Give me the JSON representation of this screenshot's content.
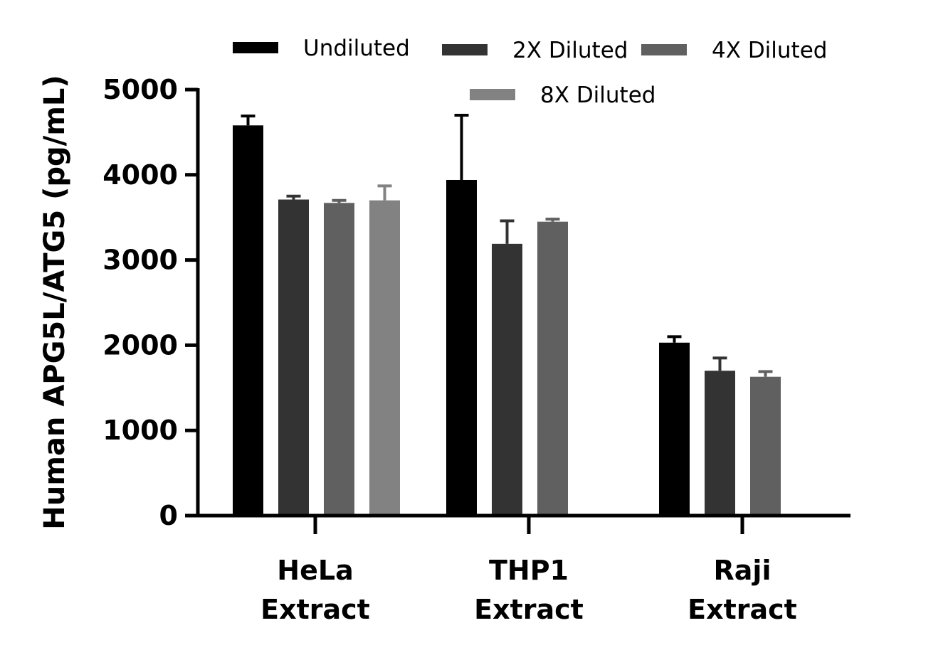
{
  "chart_data": {
    "type": "bar",
    "title": "",
    "xlabel": "",
    "ylabel": "Human APG5L/ATG5 (pg/mL)",
    "ylim": [
      0,
      5000
    ],
    "yticks": [
      "0",
      "1000",
      "2000",
      "3000",
      "4000",
      "5000"
    ],
    "categories": [
      {
        "line1": "HeLa",
        "line2": "Extract"
      },
      {
        "line1": "THP1",
        "line2": "Extract"
      },
      {
        "line1": "Raji",
        "line2": "Extract"
      }
    ],
    "series": [
      {
        "name": "Undiluted",
        "color": "#000000",
        "values": [
          4580,
          3940,
          2030
        ],
        "errors": [
          110,
          760,
          70
        ]
      },
      {
        "name": "2X Diluted",
        "color": "#333333",
        "values": [
          3710,
          3190,
          1700
        ],
        "errors": [
          40,
          270,
          150
        ]
      },
      {
        "name": "4X Diluted",
        "color": "#606060",
        "values": [
          3670,
          3450,
          1630
        ],
        "errors": [
          30,
          30,
          60
        ]
      },
      {
        "name": "8X Diluted",
        "color": "#828282",
        "values": [
          3700,
          null,
          null
        ],
        "errors": [
          170,
          null,
          null
        ]
      }
    ],
    "grid": false,
    "legend": "top"
  }
}
